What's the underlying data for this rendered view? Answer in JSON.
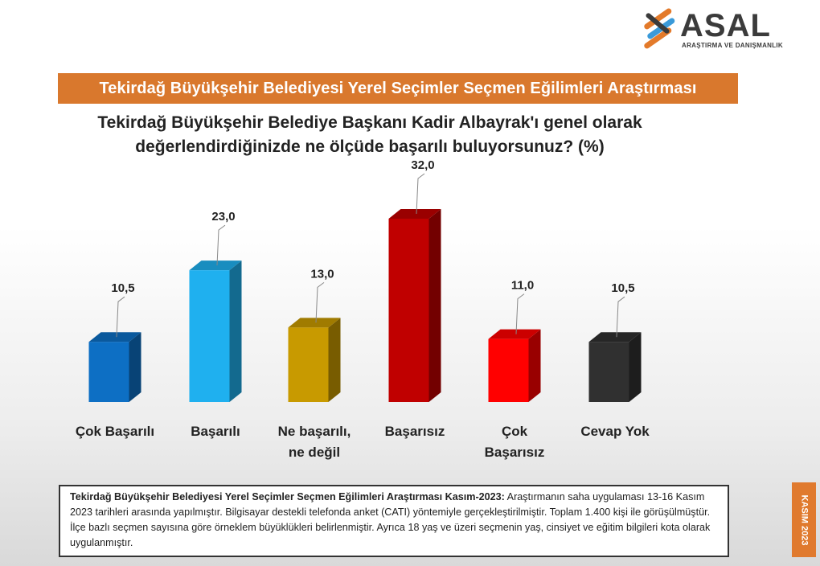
{
  "logo": {
    "name": "ASAL",
    "subtitle": "ARAŞTIRMA VE DANIŞMANLIK"
  },
  "banner": "Tekirdağ Büyükşehir Belediyesi Yerel Seçimler Seçmen Eğilimleri Araştırması",
  "question": {
    "line1": "Tekirdağ Büyükşehir Belediye Başkanı Kadir Albayrak'ı genel olarak",
    "line2": "değerlendirdiğinizde ne ölçüde başarılı buluyorsunuz? (%)"
  },
  "chart_data": {
    "type": "bar",
    "categories": [
      "Çok Başarılı",
      "Başarılı",
      "Ne başarılı, ne değil",
      "Başarısız",
      "Çok Başarısız",
      "Cevap Yok"
    ],
    "category_lines": [
      [
        "Çok Başarılı"
      ],
      [
        "Başarılı"
      ],
      [
        "Ne başarılı,",
        "ne değil"
      ],
      [
        "Başarısız"
      ],
      [
        "Çok",
        "Başarısız"
      ],
      [
        "Cevap Yok"
      ]
    ],
    "values": [
      10.5,
      23.0,
      13.0,
      32.0,
      11.0,
      10.5
    ],
    "value_labels": [
      "10,5",
      "23,0",
      "13,0",
      "32,0",
      "11,0",
      "10,5"
    ],
    "colors": [
      "#0d6fc4",
      "#1fb0ef",
      "#c89a00",
      "#c00000",
      "#ff0000",
      "#303030"
    ],
    "ylim": [
      0,
      32
    ],
    "title": "",
    "xlabel": "",
    "ylabel": "",
    "grid": false,
    "legend": "none"
  },
  "note": {
    "bold": "Tekirdağ Büyükşehir Belediyesi Yerel Seçimler Seçmen Eğilimleri Araştırması Kasım-2023:",
    "text": " Araştırmanın saha uygulaması 13-16 Kasım 2023 tarihleri arasında yapılmıştır. Bilgisayar destekli telefonda anket (CATI) yöntemiyle gerçekleştirilmiştir. Toplam 1.400 kişi ile görüşülmüştür. İlçe bazlı seçmen sayısına göre örneklem büyüklükleri belirlenmiştir. Ayrıca 18 yaş ve üzeri seçmenin yaş, cinsiyet ve eğitim bilgileri kota olarak uygulanmıştır."
  },
  "date_badge": "KASIM 2023"
}
